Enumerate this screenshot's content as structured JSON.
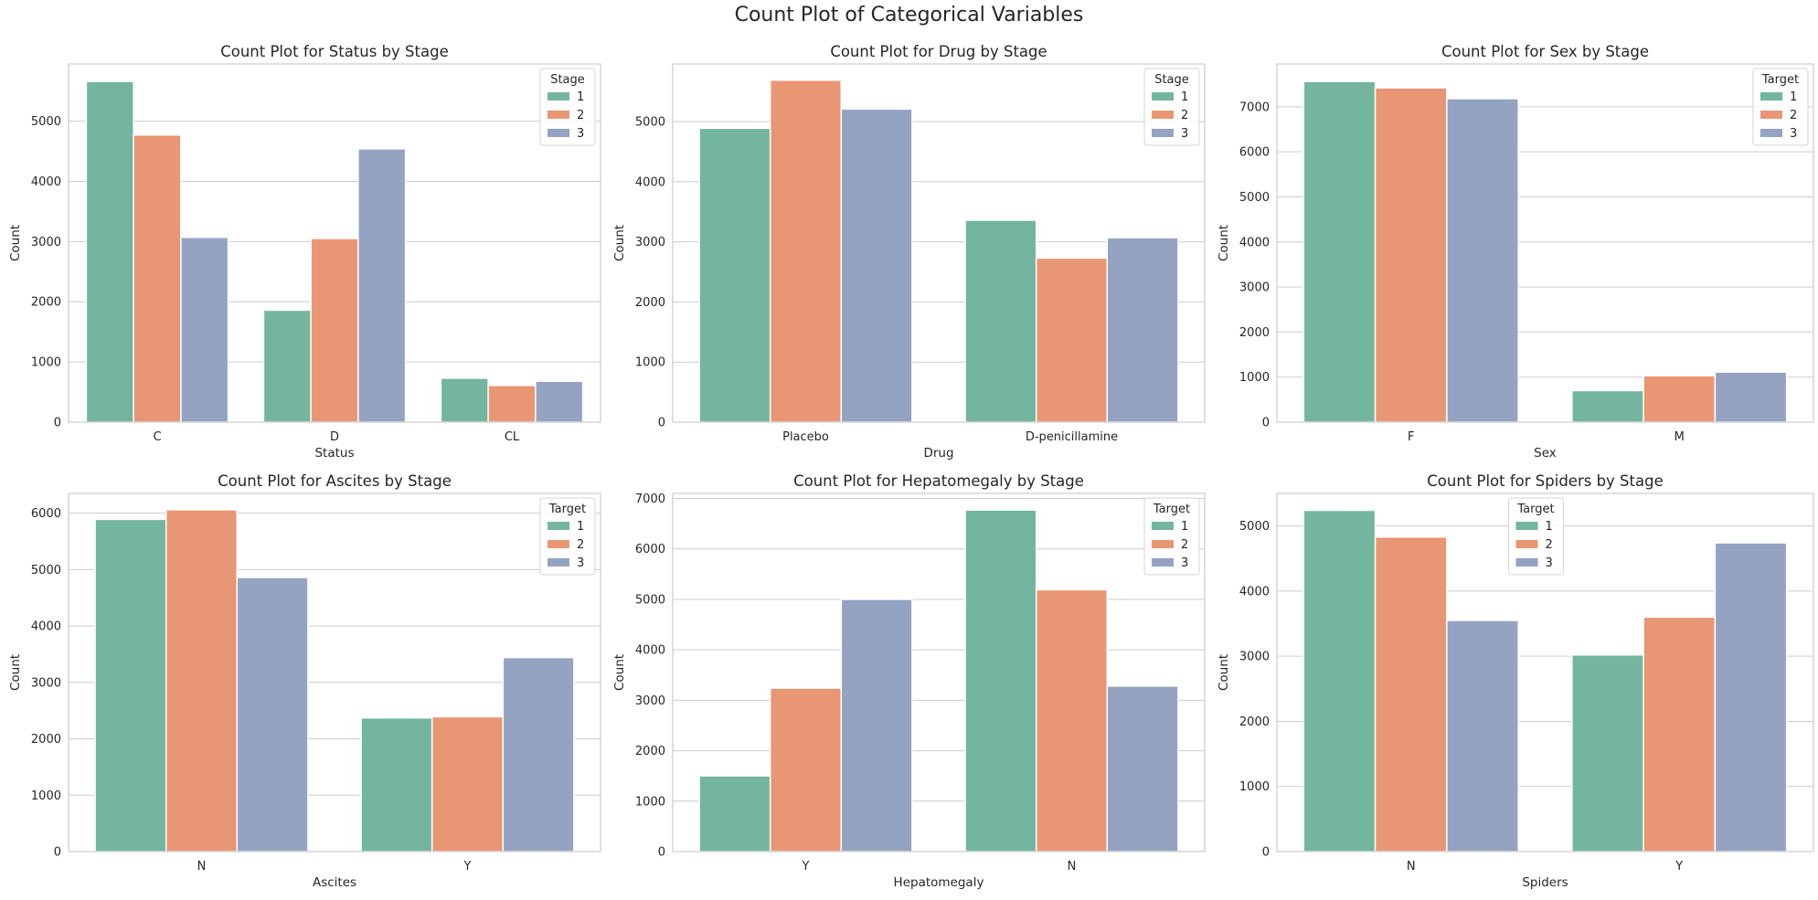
{
  "suptitle": "Count Plot of Categorical Variables",
  "colors": [
    "#73b59e",
    "#e99675",
    "#95a3c3"
  ],
  "chart_data": [
    {
      "type": "bar",
      "title": "Count Plot for Status by Stage",
      "xlabel": "Status",
      "ylabel": "Count",
      "categories": [
        "C",
        "D",
        "CL"
      ],
      "ylim": [
        0,
        5950
      ],
      "yticks": [
        0,
        1000,
        2000,
        3000,
        4000,
        5000
      ],
      "legend": {
        "title": "Stage",
        "position": "top-right"
      },
      "grid": true,
      "series": [
        {
          "name": "1",
          "values": [
            5660,
            1860,
            730
          ]
        },
        {
          "name": "2",
          "values": [
            4770,
            3050,
            610
          ]
        },
        {
          "name": "3",
          "values": [
            3070,
            4540,
            680
          ]
        }
      ]
    },
    {
      "type": "bar",
      "title": "Count Plot for Drug by Stage",
      "xlabel": "Drug",
      "ylabel": "Count",
      "categories": [
        "Placebo",
        "D-penicillamine"
      ],
      "ylim": [
        0,
        5960
      ],
      "yticks": [
        0,
        1000,
        2000,
        3000,
        4000,
        5000
      ],
      "legend": {
        "title": "Stage",
        "position": "top-right"
      },
      "grid": true,
      "series": [
        {
          "name": "1",
          "values": [
            4890,
            3360
          ]
        },
        {
          "name": "2",
          "values": [
            5690,
            2730
          ]
        },
        {
          "name": "3",
          "values": [
            5210,
            3070
          ]
        }
      ]
    },
    {
      "type": "bar",
      "title": "Count Plot for Sex by Stage",
      "xlabel": "Sex",
      "ylabel": "Count",
      "categories": [
        "F",
        "M"
      ],
      "ylim": [
        0,
        7950
      ],
      "yticks": [
        0,
        1000,
        2000,
        3000,
        4000,
        5000,
        6000,
        7000
      ],
      "legend": {
        "title": "Target",
        "position": "top-right"
      },
      "grid": true,
      "series": [
        {
          "name": "1",
          "values": [
            7560,
            700
          ]
        },
        {
          "name": "2",
          "values": [
            7420,
            1030
          ]
        },
        {
          "name": "3",
          "values": [
            7180,
            1110
          ]
        }
      ]
    },
    {
      "type": "bar",
      "title": "Count Plot for Ascites by Stage",
      "xlabel": "Ascites",
      "ylabel": "Count",
      "categories": [
        "N",
        "Y"
      ],
      "ylim": [
        0,
        6350
      ],
      "yticks": [
        0,
        1000,
        2000,
        3000,
        4000,
        5000,
        6000
      ],
      "legend": {
        "title": "Target",
        "position": "top-right"
      },
      "grid": true,
      "series": [
        {
          "name": "1",
          "values": [
            5890,
            2370
          ]
        },
        {
          "name": "2",
          "values": [
            6060,
            2390
          ]
        },
        {
          "name": "3",
          "values": [
            4860,
            3440
          ]
        }
      ]
    },
    {
      "type": "bar",
      "title": "Count Plot for Hepatomegaly by Stage",
      "xlabel": "Hepatomegaly",
      "ylabel": "Count",
      "categories": [
        "Y",
        "N"
      ],
      "ylim": [
        0,
        7100
      ],
      "yticks": [
        0,
        1000,
        2000,
        3000,
        4000,
        5000,
        6000,
        7000
      ],
      "legend": {
        "title": "Target",
        "position": "top-right"
      },
      "grid": true,
      "series": [
        {
          "name": "1",
          "values": [
            1500,
            6770
          ]
        },
        {
          "name": "2",
          "values": [
            3240,
            5190
          ]
        },
        {
          "name": "3",
          "values": [
            5000,
            3280
          ]
        }
      ]
    },
    {
      "type": "bar",
      "title": "Count Plot for Spiders by Stage",
      "xlabel": "Spiders",
      "ylabel": "Count",
      "categories": [
        "N",
        "Y"
      ],
      "ylim": [
        0,
        5500
      ],
      "yticks": [
        0,
        1000,
        2000,
        3000,
        4000,
        5000
      ],
      "legend": {
        "title": "Target",
        "position": "upper center"
      },
      "grid": true,
      "series": [
        {
          "name": "1",
          "values": [
            5240,
            3020
          ]
        },
        {
          "name": "2",
          "values": [
            4830,
            3600
          ]
        },
        {
          "name": "3",
          "values": [
            3550,
            4740
          ]
        }
      ]
    }
  ]
}
